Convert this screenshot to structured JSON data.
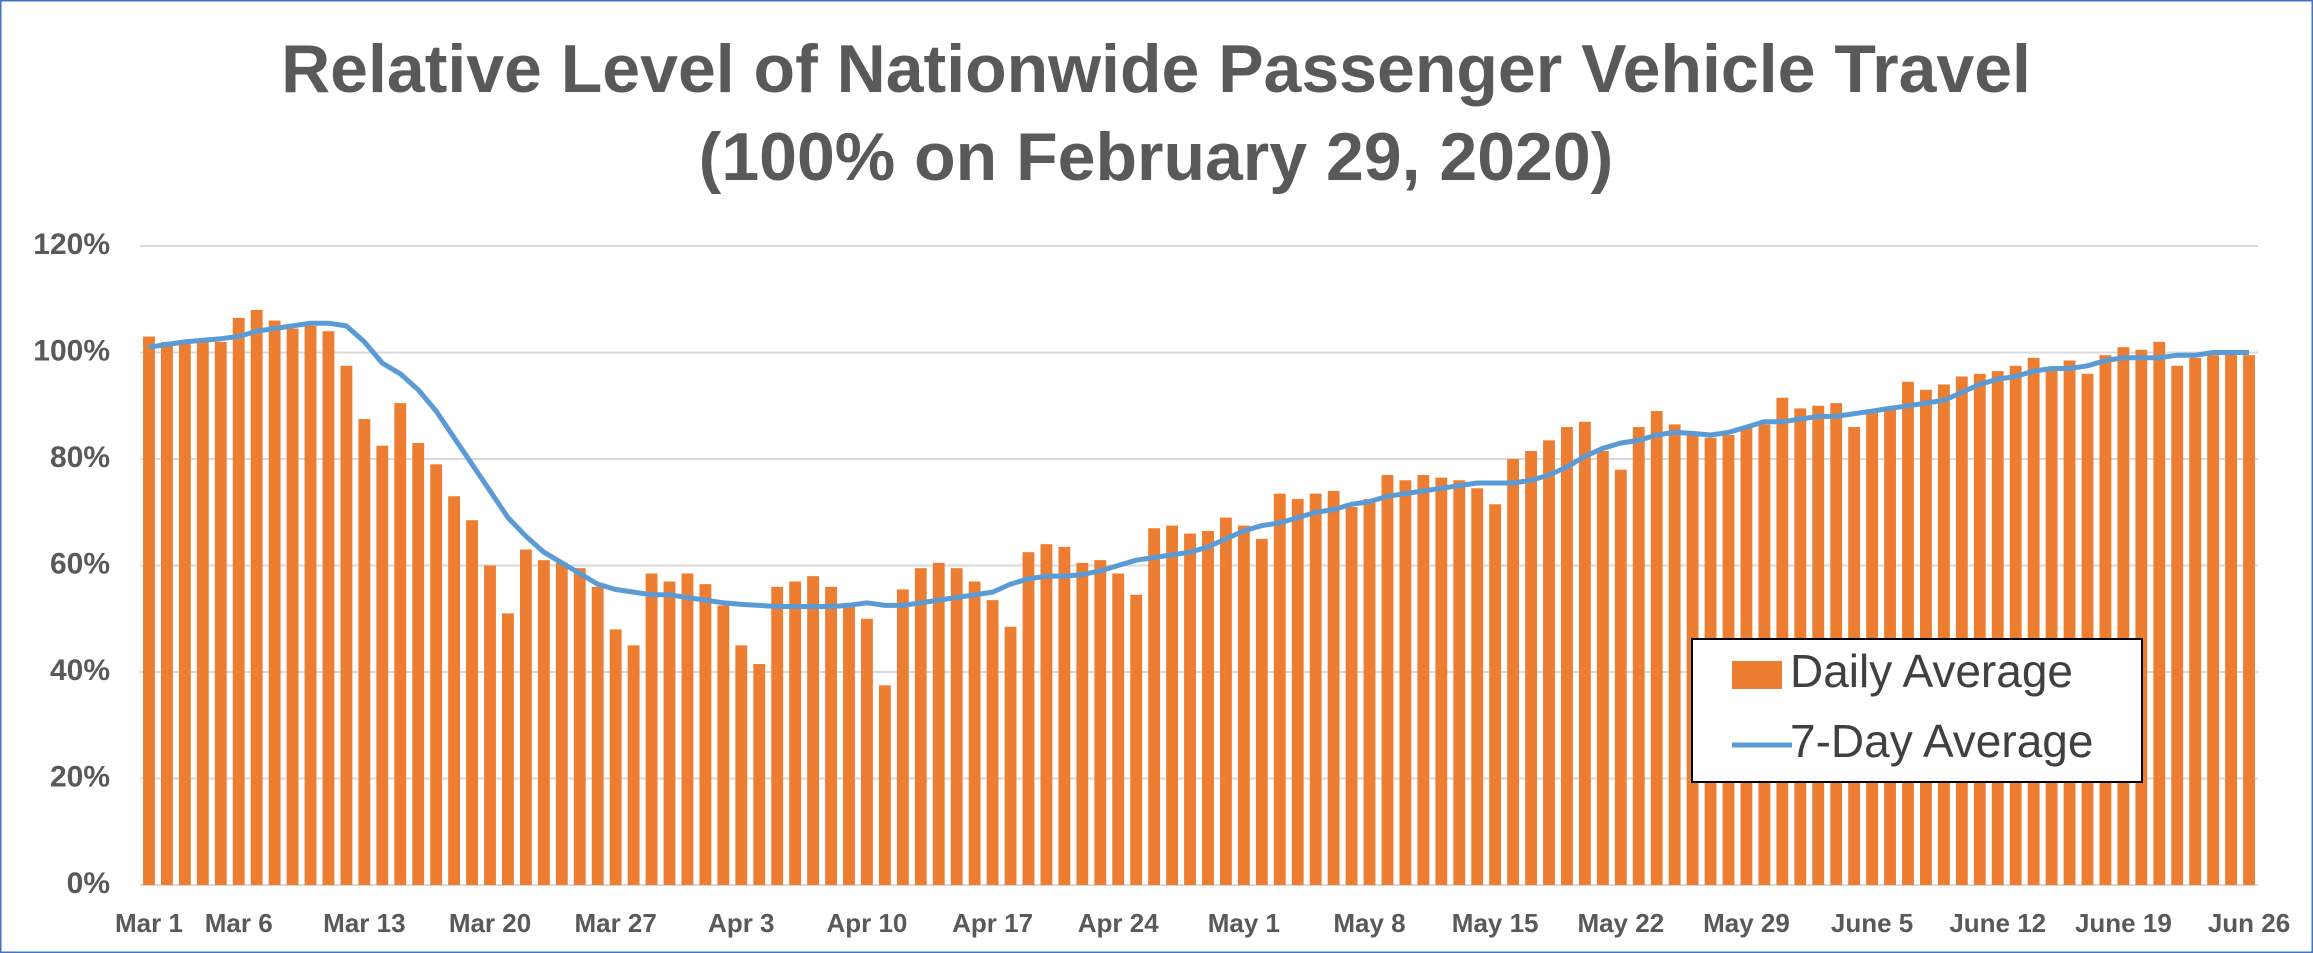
{
  "chart_data": {
    "type": "bar",
    "title": "Relative Level of Nationwide Passenger Vehicle Travel",
    "subtitle": "(100% on February 29, 2020)",
    "categories": [
      "Mar 1",
      null,
      null,
      null,
      null,
      "Mar 6",
      null,
      null,
      null,
      null,
      null,
      null,
      "Mar 13",
      null,
      null,
      null,
      null,
      null,
      null,
      "Mar 20",
      null,
      null,
      null,
      null,
      null,
      null,
      "Mar 27",
      null,
      null,
      null,
      null,
      null,
      null,
      "Apr 3",
      null,
      null,
      null,
      null,
      null,
      null,
      "Apr 10",
      null,
      null,
      null,
      null,
      null,
      null,
      "Apr 17",
      null,
      null,
      null,
      null,
      null,
      null,
      "Apr 24",
      null,
      null,
      null,
      null,
      null,
      null,
      "May 1",
      null,
      null,
      null,
      null,
      null,
      null,
      "May 8",
      null,
      null,
      null,
      null,
      null,
      null,
      "May 15",
      null,
      null,
      null,
      null,
      null,
      null,
      "May 22",
      null,
      null,
      null,
      null,
      null,
      null,
      "May 29",
      null,
      null,
      null,
      null,
      null,
      null,
      "June 5",
      null,
      null,
      null,
      null,
      null,
      null,
      "June 12",
      null,
      null,
      null,
      null,
      null,
      null,
      "June 19",
      null,
      null,
      null,
      null,
      null,
      null,
      "Jun 26"
    ],
    "series": [
      {
        "name": "Daily Average",
        "type": "bar",
        "color": "#ed7d31",
        "values": [
          103,
          102,
          102,
          102,
          102,
          106.5,
          108,
          106,
          104.5,
          105,
          104,
          97.5,
          87.5,
          82.5,
          90.5,
          83,
          79,
          73,
          68.5,
          60,
          51,
          63,
          61,
          60.5,
          59.5,
          56,
          48,
          45,
          58.5,
          57,
          58.5,
          56.5,
          52.5,
          45,
          41.5,
          56,
          57,
          58,
          56,
          53,
          50,
          37.5,
          55.5,
          59.5,
          60.5,
          59.5,
          57,
          53.5,
          48.5,
          62.5,
          64,
          63.5,
          60.5,
          61,
          58.5,
          54.5,
          67,
          67.5,
          66,
          66.5,
          69,
          67.5,
          65,
          73.5,
          72.5,
          73.5,
          74,
          71,
          72.5,
          77,
          76,
          77,
          76.5,
          76,
          74.5,
          71.5,
          80,
          81.5,
          83.5,
          86,
          87,
          81.5,
          78,
          86,
          89,
          86.5,
          85,
          84,
          84.5,
          86,
          86.5,
          91.5,
          89.5,
          90,
          90.5,
          86,
          89,
          89.5,
          94.5,
          93,
          94,
          95.5,
          96,
          96.5,
          97.5,
          99,
          97,
          98.5,
          96,
          99.5,
          101,
          100.5,
          102,
          97.5,
          99,
          99.5,
          100,
          99.5
        ]
      },
      {
        "name": "7-Day Average",
        "type": "line",
        "color": "#5b9bd5",
        "values": [
          101,
          101.5,
          102,
          102.3,
          102.6,
          103,
          104,
          104.5,
          105,
          105.5,
          105.5,
          105,
          102,
          98,
          96,
          93,
          89,
          84,
          79,
          74,
          69,
          65.5,
          62.5,
          60.5,
          58.5,
          56.5,
          55.5,
          55,
          54.5,
          54.5,
          54,
          53.5,
          53,
          52.7,
          52.5,
          52.3,
          52.3,
          52.3,
          52.3,
          52.5,
          53,
          52.5,
          52.5,
          53,
          53.5,
          54,
          54.5,
          55,
          56.5,
          57.5,
          58,
          58,
          58.3,
          59,
          60,
          61,
          61.5,
          62,
          62.5,
          63.5,
          65,
          66.5,
          67.5,
          68,
          69,
          70,
          70.5,
          71.5,
          72,
          73,
          73.5,
          74,
          74.5,
          75,
          75.5,
          75.5,
          75.5,
          76,
          77,
          78.5,
          80.5,
          82,
          83,
          83.5,
          84.5,
          85,
          84.8,
          84.5,
          85,
          86,
          87,
          87,
          87.5,
          88,
          88,
          88.5,
          89,
          89.5,
          90,
          90.5,
          91,
          92.5,
          94,
          95,
          95.5,
          96.5,
          97,
          97,
          97.5,
          98.5,
          99,
          99,
          99,
          99.5,
          99.5,
          100,
          100,
          100
        ]
      }
    ],
    "ylim": [
      0,
      120
    ],
    "yticks": [
      {
        "value": 0,
        "label": "0%"
      },
      {
        "value": 20,
        "label": "20%"
      },
      {
        "value": 40,
        "label": "40%"
      },
      {
        "value": 60,
        "label": "60%"
      },
      {
        "value": 80,
        "label": "80%"
      },
      {
        "value": 100,
        "label": "100%"
      },
      {
        "value": 120,
        "label": "120%"
      }
    ],
    "grid": true,
    "legend": "lower right"
  }
}
